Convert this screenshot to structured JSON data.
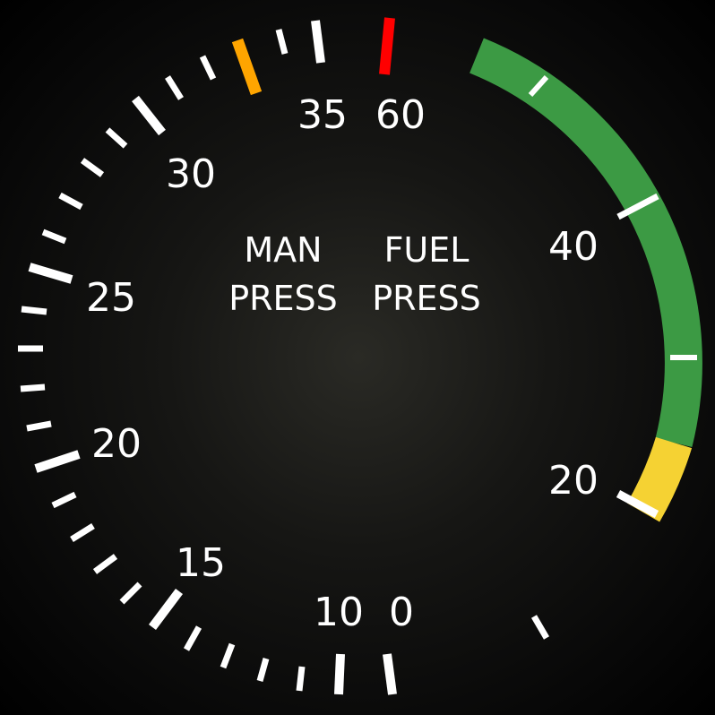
{
  "gauge": {
    "manifold_label_line1": "MAN",
    "manifold_label_line2": "PRESS",
    "fuel_label_line1": "FUEL",
    "fuel_label_line2": "PRESS",
    "manifold_scale": [
      "10",
      "15",
      "20",
      "25",
      "30",
      "35"
    ],
    "fuel_scale": [
      "0",
      "20",
      "40",
      "60"
    ]
  },
  "colors": {
    "green_arc": "#3c9a44",
    "yellow_arc": "#f5d233",
    "amber_marker": "#ffa500",
    "red_marker": "#ff0000",
    "markings": "#ffffff"
  }
}
